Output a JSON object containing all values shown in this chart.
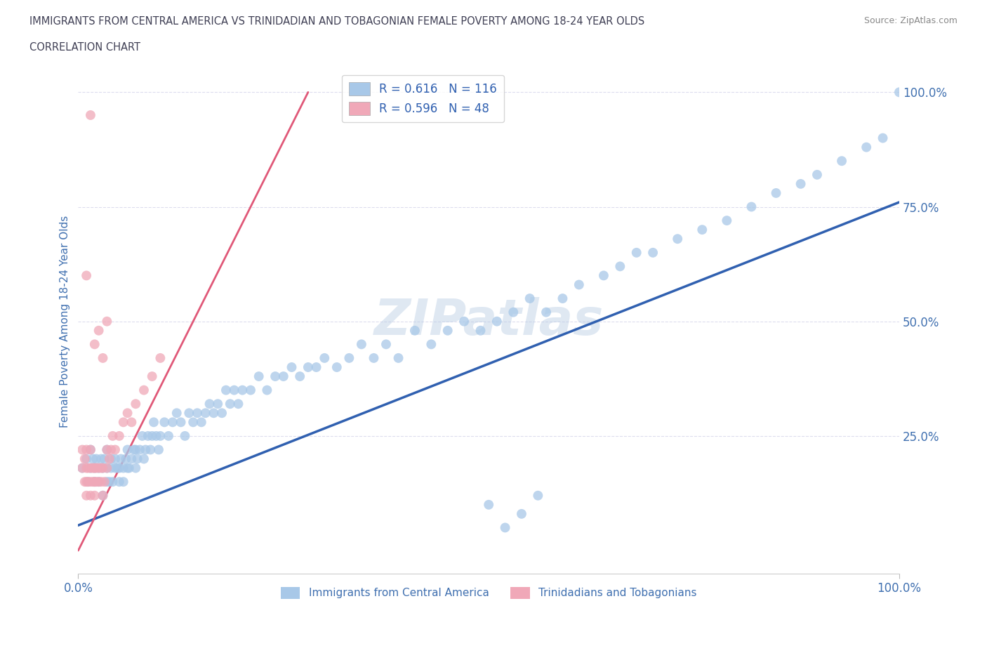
{
  "title_line1": "IMMIGRANTS FROM CENTRAL AMERICA VS TRINIDADIAN AND TOBAGONIAN FEMALE POVERTY AMONG 18-24 YEAR OLDS",
  "title_line2": "CORRELATION CHART",
  "source_text": "Source: ZipAtlas.com",
  "ylabel": "Female Poverty Among 18-24 Year Olds",
  "xlim": [
    0.0,
    1.0
  ],
  "ylim": [
    -0.05,
    1.05
  ],
  "xtick_labels": [
    "0.0%",
    "100.0%"
  ],
  "ytick_labels": [
    "25.0%",
    "50.0%",
    "75.0%",
    "100.0%"
  ],
  "ytick_values": [
    0.25,
    0.5,
    0.75,
    1.0
  ],
  "legend_blue_label": "R = 0.616   N = 116",
  "legend_pink_label": "R = 0.596   N = 48",
  "blue_color": "#a8c8e8",
  "pink_color": "#f0a8b8",
  "blue_line_color": "#3060b0",
  "pink_line_color": "#e05878",
  "title_color": "#404055",
  "axis_label_color": "#4070b0",
  "tick_label_color": "#4070b0",
  "watermark": "ZIPatlas",
  "blue_scatter_x": [
    0.005,
    0.01,
    0.012,
    0.015,
    0.015,
    0.018,
    0.02,
    0.02,
    0.022,
    0.025,
    0.025,
    0.028,
    0.03,
    0.03,
    0.032,
    0.035,
    0.035,
    0.035,
    0.038,
    0.04,
    0.04,
    0.042,
    0.045,
    0.045,
    0.048,
    0.05,
    0.05,
    0.052,
    0.055,
    0.055,
    0.058,
    0.06,
    0.06,
    0.062,
    0.065,
    0.068,
    0.07,
    0.07,
    0.072,
    0.075,
    0.078,
    0.08,
    0.082,
    0.085,
    0.088,
    0.09,
    0.092,
    0.095,
    0.098,
    0.1,
    0.105,
    0.11,
    0.115,
    0.12,
    0.125,
    0.13,
    0.135,
    0.14,
    0.145,
    0.15,
    0.155,
    0.16,
    0.165,
    0.17,
    0.175,
    0.18,
    0.185,
    0.19,
    0.195,
    0.2,
    0.21,
    0.22,
    0.23,
    0.24,
    0.25,
    0.26,
    0.27,
    0.28,
    0.29,
    0.3,
    0.315,
    0.33,
    0.345,
    0.36,
    0.375,
    0.39,
    0.41,
    0.43,
    0.45,
    0.47,
    0.49,
    0.51,
    0.53,
    0.55,
    0.57,
    0.59,
    0.61,
    0.64,
    0.66,
    0.68,
    0.7,
    0.73,
    0.76,
    0.79,
    0.82,
    0.85,
    0.88,
    0.9,
    0.93,
    0.96,
    0.98,
    1.0,
    0.5,
    0.52,
    0.54,
    0.56
  ],
  "blue_scatter_y": [
    0.18,
    0.2,
    0.15,
    0.22,
    0.18,
    0.2,
    0.15,
    0.18,
    0.2,
    0.15,
    0.18,
    0.2,
    0.12,
    0.18,
    0.2,
    0.15,
    0.18,
    0.22,
    0.15,
    0.18,
    0.2,
    0.15,
    0.18,
    0.2,
    0.18,
    0.15,
    0.18,
    0.2,
    0.15,
    0.18,
    0.2,
    0.18,
    0.22,
    0.18,
    0.2,
    0.22,
    0.18,
    0.22,
    0.2,
    0.22,
    0.25,
    0.2,
    0.22,
    0.25,
    0.22,
    0.25,
    0.28,
    0.25,
    0.22,
    0.25,
    0.28,
    0.25,
    0.28,
    0.3,
    0.28,
    0.25,
    0.3,
    0.28,
    0.3,
    0.28,
    0.3,
    0.32,
    0.3,
    0.32,
    0.3,
    0.35,
    0.32,
    0.35,
    0.32,
    0.35,
    0.35,
    0.38,
    0.35,
    0.38,
    0.38,
    0.4,
    0.38,
    0.4,
    0.4,
    0.42,
    0.4,
    0.42,
    0.45,
    0.42,
    0.45,
    0.42,
    0.48,
    0.45,
    0.48,
    0.5,
    0.48,
    0.5,
    0.52,
    0.55,
    0.52,
    0.55,
    0.58,
    0.6,
    0.62,
    0.65,
    0.65,
    0.68,
    0.7,
    0.72,
    0.75,
    0.78,
    0.8,
    0.82,
    0.85,
    0.88,
    0.9,
    1.0,
    0.1,
    0.05,
    0.08,
    0.12
  ],
  "pink_scatter_x": [
    0.005,
    0.005,
    0.008,
    0.008,
    0.01,
    0.01,
    0.01,
    0.01,
    0.012,
    0.012,
    0.015,
    0.015,
    0.015,
    0.015,
    0.018,
    0.018,
    0.02,
    0.02,
    0.02,
    0.022,
    0.022,
    0.025,
    0.025,
    0.028,
    0.028,
    0.03,
    0.03,
    0.032,
    0.035,
    0.035,
    0.038,
    0.04,
    0.042,
    0.045,
    0.05,
    0.055,
    0.06,
    0.065,
    0.07,
    0.08,
    0.09,
    0.1,
    0.035,
    0.025,
    0.02,
    0.03,
    0.01,
    0.015
  ],
  "pink_scatter_y": [
    0.18,
    0.22,
    0.15,
    0.2,
    0.12,
    0.15,
    0.18,
    0.22,
    0.15,
    0.18,
    0.12,
    0.15,
    0.18,
    0.22,
    0.15,
    0.18,
    0.12,
    0.15,
    0.18,
    0.15,
    0.18,
    0.15,
    0.18,
    0.15,
    0.18,
    0.12,
    0.18,
    0.15,
    0.18,
    0.22,
    0.2,
    0.22,
    0.25,
    0.22,
    0.25,
    0.28,
    0.3,
    0.28,
    0.32,
    0.35,
    0.38,
    0.42,
    0.5,
    0.48,
    0.45,
    0.42,
    0.6,
    0.95
  ],
  "blue_trend_x": [
    0.0,
    1.0
  ],
  "blue_trend_y": [
    0.055,
    0.76
  ],
  "pink_trend_x": [
    0.0,
    0.28
  ],
  "pink_trend_y": [
    0.0,
    1.0
  ]
}
